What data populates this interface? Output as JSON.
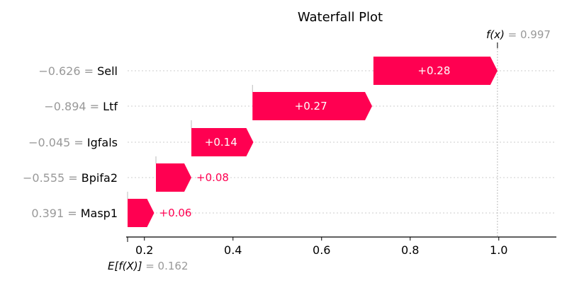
{
  "chart_data": {
    "type": "waterfall",
    "title": "Waterfall Plot",
    "base_value": 0.162,
    "base_label": "E[f(X)]",
    "base_value_text": "= 0.162",
    "output_value": 0.997,
    "output_label": "f(x)",
    "output_value_text": "= 0.997",
    "features": [
      {
        "feature_value": "−0.626",
        "name": "Sell",
        "contribution": 0.28,
        "label": "+0.28",
        "start": 0.717
      },
      {
        "feature_value": "−0.894",
        "name": "Ltf",
        "contribution": 0.27,
        "label": "+0.27",
        "start": 0.444
      },
      {
        "feature_value": "−0.045",
        "name": "Igfals",
        "contribution": 0.14,
        "label": "+0.14",
        "start": 0.306
      },
      {
        "feature_value": "−0.555",
        "name": "Bpifa2",
        "contribution": 0.08,
        "label": "+0.08",
        "start": 0.226
      },
      {
        "feature_value": "0.391",
        "name": "Masp1",
        "contribution": 0.06,
        "label": "+0.06",
        "start": 0.162
      }
    ],
    "x_ticks": [
      "0.2",
      "0.4",
      "0.6",
      "0.8",
      "1.0"
    ],
    "x_tick_values": [
      0.2,
      0.4,
      0.6,
      0.8,
      1.0
    ],
    "xlim": [
      0.162,
      1.13
    ],
    "colors": {
      "positive": "#ff0051",
      "text_inside": "#ffffff",
      "value_gray": "#999999"
    }
  }
}
